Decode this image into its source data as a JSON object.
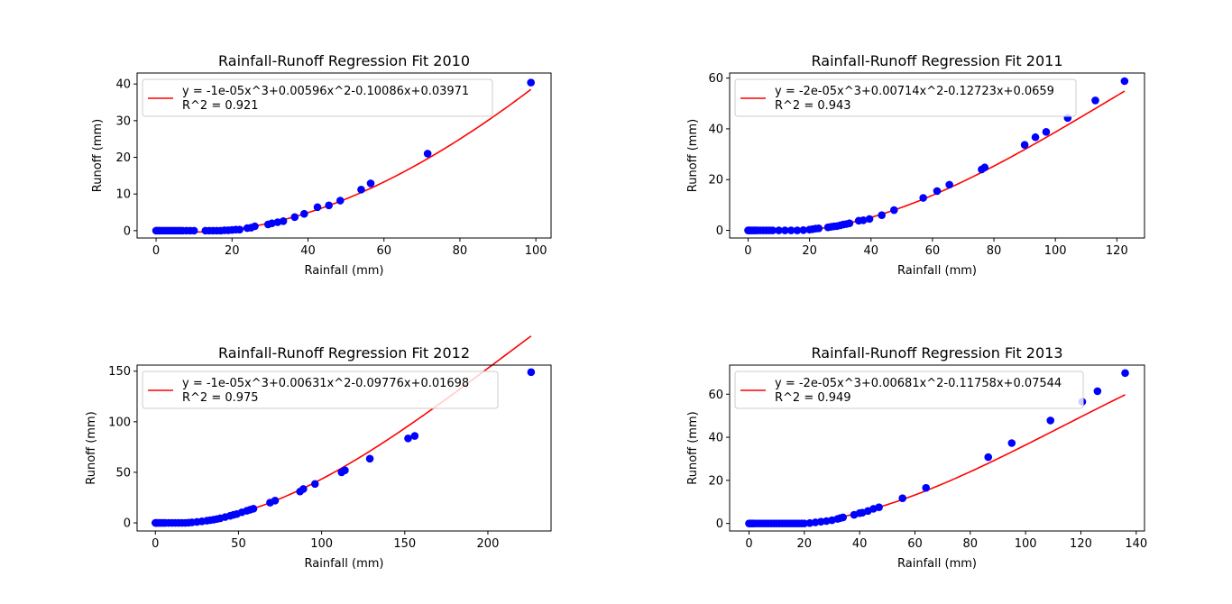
{
  "colors": {
    "fit_line": "#ff0000",
    "points": "#0000ff",
    "axes": "#000000",
    "background": "#ffffff"
  },
  "chart_data": [
    {
      "type": "scatter",
      "title": "Rainfall-Runoff Regression Fit 2010",
      "xlabel": "Rainfall (mm)",
      "ylabel": "Runoff (mm)",
      "xlim": [
        -5,
        104
      ],
      "ylim": [
        -2,
        43
      ],
      "xticks": [
        0,
        20,
        40,
        60,
        80,
        100
      ],
      "yticks": [
        0,
        10,
        20,
        30,
        40
      ],
      "legend_placement": "top-left",
      "grid": false,
      "fit": {
        "label_line1": "y = -1e-05x^3+0.00596x^2-0.10086x+0.03971",
        "label_line2": "R^2 = 0.921",
        "coefficients": [
          -1e-05,
          0.00596,
          -0.10086,
          0.03971
        ],
        "x_range": [
          0,
          98.7
        ]
      },
      "series": [
        {
          "x": [
            0,
            0.2,
            0.5,
            0.8,
            1,
            1.5,
            2,
            2.5,
            3,
            3.5,
            4,
            4.5,
            5,
            5.5,
            6,
            6.5,
            7,
            8,
            9,
            10,
            13,
            14,
            15,
            16,
            17,
            18,
            19,
            20,
            21,
            22,
            24,
            25,
            26,
            29.5,
            30.5,
            32,
            33.5,
            36.5,
            39,
            42.5,
            45.5,
            48.5,
            54,
            56.5,
            71.5,
            98.7
          ],
          "y": [
            0,
            0,
            0,
            0,
            0,
            0,
            0,
            0,
            0,
            0,
            0,
            0,
            0,
            0,
            0,
            0,
            0,
            0,
            0,
            0,
            0,
            0,
            0,
            0,
            0,
            0.1,
            0.1,
            0.2,
            0.3,
            0.3,
            0.7,
            0.8,
            1.2,
            1.7,
            2.0,
            2.3,
            2.6,
            3.7,
            4.6,
            6.4,
            6.9,
            8.2,
            11.2,
            12.9,
            21.0,
            40.4
          ]
        }
      ]
    },
    {
      "type": "scatter",
      "title": "Rainfall-Runoff Regression Fit 2011",
      "xlabel": "Rainfall (mm)",
      "ylabel": "Runoff (mm)",
      "xlim": [
        -6,
        129
      ],
      "ylim": [
        -3,
        62
      ],
      "xticks": [
        0,
        20,
        40,
        60,
        80,
        100,
        120
      ],
      "yticks": [
        0,
        20,
        40,
        60
      ],
      "legend_placement": "top-left",
      "grid": false,
      "fit": {
        "label_line1": "y = -2e-05x^3+0.00714x^2-0.12723x+0.0659",
        "label_line2": "R^2 = 0.943",
        "coefficients": [
          -2e-05,
          0.00714,
          -0.12723,
          0.0659
        ],
        "x_range": [
          0,
          122.5
        ]
      },
      "series": [
        {
          "x": [
            0,
            0.3,
            0.6,
            1,
            1.5,
            2,
            2.5,
            3,
            4,
            5,
            6,
            7,
            8,
            10,
            12,
            14,
            16,
            18,
            20,
            21,
            22,
            23,
            26,
            27,
            28,
            29,
            30,
            31,
            32,
            33,
            36,
            37.5,
            39.5,
            43.5,
            47.5,
            57,
            61.5,
            65.5,
            76,
            77,
            90,
            93.5,
            97,
            104,
            113,
            122.5
          ],
          "y": [
            0,
            0,
            0,
            0,
            0,
            0,
            0,
            0,
            0,
            0,
            0,
            0,
            0,
            0,
            0,
            0,
            0,
            0.1,
            0.3,
            0.5,
            0.7,
            0.8,
            1.2,
            1.4,
            1.6,
            1.7,
            2.0,
            2.3,
            2.5,
            2.8,
            3.8,
            4.0,
            4.5,
            6.0,
            8.0,
            12.8,
            15.5,
            18.0,
            24.0,
            24.8,
            33.7,
            36.7,
            38.8,
            44.3,
            51.2,
            58.8
          ]
        }
      ]
    },
    {
      "type": "scatter",
      "title": "Rainfall-Runoff Regression Fit 2012",
      "xlabel": "Rainfall (mm)",
      "ylabel": "Runoff (mm)",
      "xlim": [
        -11,
        238
      ],
      "ylim": [
        -8,
        156
      ],
      "xticks": [
        0,
        50,
        100,
        150,
        200
      ],
      "yticks": [
        0,
        50,
        100,
        150
      ],
      "legend_placement": "top-left",
      "grid": false,
      "fit": {
        "label_line1": "y = -1e-05x^3+0.00631x^2-0.09776x+0.01698",
        "label_line2": "R^2 = 0.975",
        "coefficients": [
          -1e-05,
          0.00631,
          -0.09776,
          0.01698
        ],
        "x_range": [
          0,
          226
        ]
      },
      "series": [
        {
          "x": [
            0,
            0.5,
            1,
            2,
            3,
            4,
            5,
            6,
            8,
            10,
            12,
            14,
            16,
            18,
            20,
            22,
            25,
            28,
            31,
            33,
            35,
            37,
            39,
            42,
            45,
            47,
            49,
            52,
            55,
            57,
            59,
            69,
            72,
            87,
            89,
            96,
            112,
            114,
            129,
            152,
            156,
            226
          ],
          "y": [
            0,
            0,
            0,
            0,
            0,
            0,
            0,
            0,
            0,
            0,
            0,
            0,
            0,
            0,
            0.2,
            0.5,
            1,
            1.5,
            2.2,
            2.7,
            3.2,
            3.8,
            4.5,
            5.8,
            7,
            8,
            8.8,
            10.5,
            12,
            13,
            14,
            20,
            22,
            31,
            33.5,
            38.5,
            50,
            52,
            63.5,
            83.5,
            86,
            149
          ]
        }
      ]
    },
    {
      "type": "scatter",
      "title": "Rainfall-Runoff Regression Fit 2013",
      "xlabel": "Rainfall (mm)",
      "ylabel": "Runoff (mm)",
      "xlim": [
        -7,
        143
      ],
      "ylim": [
        -3.5,
        73.5
      ],
      "xticks": [
        0,
        20,
        40,
        60,
        80,
        100,
        120,
        140
      ],
      "yticks": [
        0,
        20,
        40,
        60
      ],
      "legend_placement": "top-left",
      "grid": false,
      "fit": {
        "label_line1": "y = -2e-05x^3+0.00681x^2-0.11758x+0.07544",
        "label_line2": "R^2 = 0.949",
        "coefficients": [
          -2e-05,
          0.00681,
          -0.11758,
          0.07544
        ],
        "x_range": [
          0,
          136
        ]
      },
      "series": [
        {
          "x": [
            0,
            0.3,
            0.6,
            1,
            1.5,
            2,
            3,
            4,
            5,
            6,
            7,
            8,
            9,
            10,
            11,
            12,
            13,
            14,
            15,
            16,
            17,
            18,
            19,
            20,
            22,
            24,
            26,
            28,
            30,
            32,
            33,
            34,
            38,
            40,
            41,
            43,
            45,
            47,
            55.5,
            64,
            86.5,
            95,
            109,
            120.5,
            126,
            136
          ],
          "y": [
            0,
            0,
            0,
            0,
            0,
            0,
            0,
            0,
            0,
            0,
            0,
            0,
            0,
            0,
            0,
            0,
            0,
            0,
            0,
            0,
            0,
            0,
            0,
            0,
            0.2,
            0.5,
            0.8,
            1.1,
            1.5,
            2.1,
            2.5,
            2.8,
            4.0,
            4.8,
            5.0,
            5.8,
            6.8,
            7.5,
            11.7,
            16.5,
            30.8,
            37.3,
            47.8,
            56.5,
            61.4,
            69.8
          ]
        }
      ]
    }
  ]
}
